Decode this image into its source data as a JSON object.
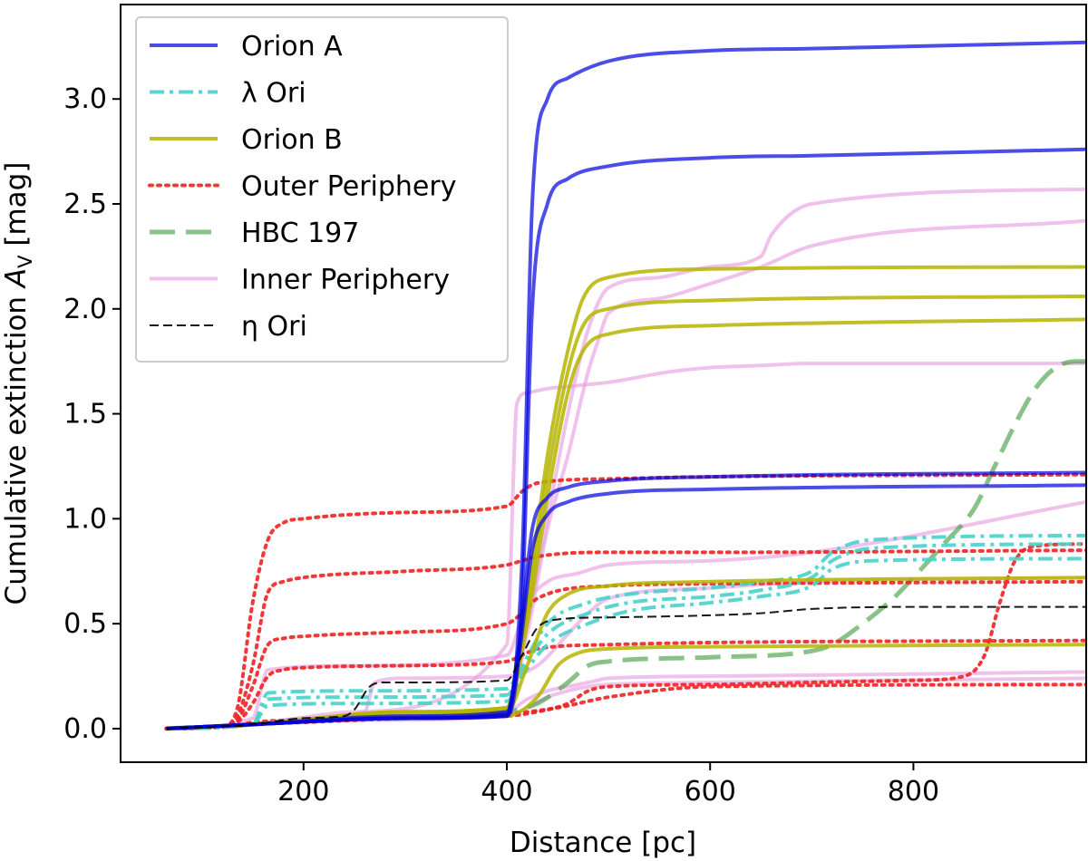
{
  "chart_data": {
    "type": "line",
    "title": "",
    "xlabel": "Distance [pc]",
    "ylabel_prefix": "Cumulative extinction ",
    "ylabel_symbol": "A",
    "ylabel_subscript": "V",
    "ylabel_suffix": " [mag]",
    "xlim": [
      20,
      970
    ],
    "ylim": [
      -0.16,
      3.45
    ],
    "xticks": [
      200,
      400,
      600,
      800
    ],
    "yticks": [
      0.0,
      0.5,
      1.0,
      1.5,
      2.0,
      2.5,
      3.0
    ],
    "xtick_labels": [
      "200",
      "400",
      "600",
      "800"
    ],
    "ytick_labels": [
      "0.0",
      "0.5",
      "1.0",
      "1.5",
      "2.0",
      "2.5",
      "3.0"
    ],
    "grid": false,
    "legend_position": "top-left",
    "legend": [
      {
        "label": "Orion A",
        "color": "#0000e0",
        "dash": "solid",
        "opacity": 0.7,
        "width": 4
      },
      {
        "label": "λ Ori",
        "color": "#48d1cc",
        "dash": "dashdot",
        "opacity": 0.9,
        "width": 4
      },
      {
        "label": "Orion B",
        "color": "#b5b500",
        "dash": "solid",
        "opacity": 0.85,
        "width": 4
      },
      {
        "label": "Outer Periphery",
        "color": "#ee2222",
        "dash": "dotted",
        "opacity": 0.9,
        "width": 4
      },
      {
        "label": "HBC 197",
        "color": "#3a9a3a",
        "dash": "dashed",
        "opacity": 0.6,
        "width": 5
      },
      {
        "label": "Inner Periphery",
        "color": "#e6a0e0",
        "dash": "solid",
        "opacity": 0.65,
        "width": 4
      },
      {
        "label": "η Ori",
        "color": "#000000",
        "dash": "finedash",
        "opacity": 0.9,
        "width": 2
      }
    ],
    "series": [
      {
        "group": "Orion A",
        "x": [
          65,
          150,
          300,
          400,
          415,
          425,
          440,
          460,
          500,
          600,
          700,
          970
        ],
        "y": [
          0,
          0.02,
          0.05,
          0.06,
          0.8,
          2.5,
          3.0,
          3.1,
          3.18,
          3.23,
          3.24,
          3.27
        ]
      },
      {
        "group": "Orion A",
        "x": [
          65,
          150,
          300,
          400,
          415,
          425,
          440,
          460,
          500,
          600,
          700,
          970
        ],
        "y": [
          0,
          0.02,
          0.05,
          0.06,
          0.6,
          2.0,
          2.5,
          2.62,
          2.68,
          2.72,
          2.73,
          2.76
        ]
      },
      {
        "group": "Orion A",
        "x": [
          65,
          150,
          300,
          400,
          412,
          425,
          440,
          460,
          500,
          600,
          970
        ],
        "y": [
          0,
          0.02,
          0.06,
          0.08,
          0.4,
          0.95,
          1.1,
          1.15,
          1.18,
          1.2,
          1.22
        ]
      },
      {
        "group": "Orion A",
        "x": [
          65,
          150,
          300,
          400,
          412,
          425,
          440,
          460,
          500,
          600,
          970
        ],
        "y": [
          0,
          0.02,
          0.05,
          0.07,
          0.35,
          0.85,
          1.02,
          1.08,
          1.12,
          1.14,
          1.16
        ]
      },
      {
        "group": "λ Ori",
        "x": [
          65,
          150,
          165,
          250,
          400,
          415,
          440,
          480,
          520,
          600,
          650,
          700,
          720,
          760,
          970
        ],
        "y": [
          0,
          0.02,
          0.17,
          0.18,
          0.19,
          0.3,
          0.5,
          0.6,
          0.64,
          0.67,
          0.7,
          0.75,
          0.84,
          0.9,
          0.92
        ]
      },
      {
        "group": "λ Ori",
        "x": [
          65,
          150,
          165,
          250,
          400,
          415,
          440,
          480,
          520,
          600,
          650,
          700,
          720,
          760,
          970
        ],
        "y": [
          0,
          0.02,
          0.14,
          0.15,
          0.16,
          0.28,
          0.45,
          0.55,
          0.6,
          0.63,
          0.66,
          0.72,
          0.8,
          0.86,
          0.88
        ]
      },
      {
        "group": "λ Ori",
        "x": [
          65,
          150,
          165,
          250,
          400,
          415,
          440,
          480,
          520,
          600,
          650,
          700,
          720,
          760,
          970
        ],
        "y": [
          0,
          0.02,
          0.11,
          0.12,
          0.13,
          0.25,
          0.4,
          0.5,
          0.56,
          0.6,
          0.63,
          0.68,
          0.76,
          0.8,
          0.81
        ]
      },
      {
        "group": "Orion B",
        "x": [
          65,
          150,
          300,
          400,
          420,
          440,
          460,
          475,
          500,
          600,
          970
        ],
        "y": [
          0,
          0.02,
          0.08,
          0.1,
          0.6,
          1.3,
          1.8,
          2.05,
          2.15,
          2.19,
          2.2
        ]
      },
      {
        "group": "Orion B",
        "x": [
          65,
          150,
          300,
          400,
          420,
          440,
          460,
          475,
          500,
          600,
          970
        ],
        "y": [
          0,
          0.02,
          0.08,
          0.1,
          0.55,
          1.2,
          1.7,
          1.92,
          2.0,
          2.04,
          2.06
        ]
      },
      {
        "group": "Orion B",
        "x": [
          65,
          150,
          300,
          400,
          420,
          440,
          460,
          475,
          500,
          600,
          970
        ],
        "y": [
          0,
          0.02,
          0.08,
          0.1,
          0.5,
          1.1,
          1.6,
          1.8,
          1.88,
          1.92,
          1.95
        ]
      },
      {
        "group": "Orion B",
        "x": [
          65,
          150,
          300,
          400,
          420,
          440,
          460,
          500,
          600,
          970
        ],
        "y": [
          0,
          0.02,
          0.07,
          0.08,
          0.3,
          0.55,
          0.64,
          0.68,
          0.7,
          0.72
        ]
      },
      {
        "group": "Orion B",
        "x": [
          65,
          150,
          300,
          400,
          430,
          450,
          470,
          500,
          600,
          970
        ],
        "y": [
          0,
          0.02,
          0.05,
          0.06,
          0.15,
          0.3,
          0.36,
          0.38,
          0.39,
          0.4
        ]
      },
      {
        "group": "Outer Periphery",
        "x": [
          65,
          120,
          135,
          150,
          165,
          180,
          200,
          300,
          400,
          415,
          430,
          500,
          600,
          970
        ],
        "y": [
          0,
          0.01,
          0.1,
          0.6,
          0.9,
          0.98,
          1.0,
          1.03,
          1.06,
          1.13,
          1.17,
          1.19,
          1.2,
          1.21
        ]
      },
      {
        "group": "Outer Periphery",
        "x": [
          65,
          120,
          135,
          150,
          165,
          180,
          200,
          300,
          400,
          415,
          430,
          500,
          600,
          970
        ],
        "y": [
          0,
          0.01,
          0.06,
          0.3,
          0.65,
          0.7,
          0.72,
          0.75,
          0.78,
          0.8,
          0.82,
          0.84,
          0.84,
          0.85
        ]
      },
      {
        "group": "Outer Periphery",
        "x": [
          65,
          120,
          135,
          150,
          165,
          180,
          200,
          300,
          400,
          415,
          430,
          500,
          600,
          970
        ],
        "y": [
          0,
          0.01,
          0.04,
          0.2,
          0.4,
          0.43,
          0.44,
          0.46,
          0.5,
          0.55,
          0.62,
          0.68,
          0.69,
          0.7
        ]
      },
      {
        "group": "Outer Periphery",
        "x": [
          65,
          120,
          135,
          150,
          165,
          180,
          200,
          300,
          400,
          415,
          430,
          500,
          600,
          970
        ],
        "y": [
          0,
          0.01,
          0.03,
          0.12,
          0.25,
          0.28,
          0.29,
          0.3,
          0.32,
          0.35,
          0.38,
          0.4,
          0.41,
          0.42
        ]
      },
      {
        "group": "Outer Periphery",
        "x": [
          65,
          130,
          150,
          200,
          300,
          400,
          430,
          460,
          480,
          500,
          600,
          700,
          800,
          850,
          870,
          885,
          900,
          920,
          970
        ],
        "y": [
          0,
          0.01,
          0.03,
          0.04,
          0.05,
          0.06,
          0.08,
          0.12,
          0.18,
          0.2,
          0.21,
          0.22,
          0.23,
          0.25,
          0.35,
          0.6,
          0.8,
          0.87,
          0.88
        ]
      },
      {
        "group": "Outer Periphery",
        "x": [
          65,
          130,
          150,
          200,
          300,
          400,
          450,
          500,
          600,
          970
        ],
        "y": [
          0,
          0.01,
          0.02,
          0.03,
          0.05,
          0.07,
          0.1,
          0.15,
          0.2,
          0.21
        ]
      },
      {
        "group": "HBC 197",
        "x": [
          65,
          150,
          200,
          300,
          400,
          430,
          460,
          480,
          500,
          600,
          700,
          720,
          750,
          780,
          800,
          830,
          860,
          880,
          900,
          920,
          940,
          960,
          970
        ],
        "y": [
          0,
          0.02,
          0.04,
          0.05,
          0.08,
          0.12,
          0.22,
          0.3,
          0.32,
          0.34,
          0.37,
          0.4,
          0.5,
          0.62,
          0.72,
          0.88,
          1.05,
          1.25,
          1.45,
          1.62,
          1.72,
          1.75,
          1.75
        ]
      },
      {
        "group": "Inner Periphery",
        "x": [
          65,
          150,
          250,
          400,
          410,
          420,
          440,
          460,
          480,
          500,
          560,
          600,
          650,
          700,
          970
        ],
        "y": [
          0,
          0.02,
          0.08,
          0.4,
          1.55,
          1.6,
          1.62,
          1.63,
          1.64,
          1.65,
          1.7,
          1.72,
          1.73,
          1.74,
          1.74
        ]
      },
      {
        "group": "Inner Periphery",
        "x": [
          65,
          150,
          250,
          400,
          420,
          440,
          460,
          480,
          500,
          550,
          600,
          650,
          660,
          700,
          970
        ],
        "y": [
          0,
          0.02,
          0.05,
          0.1,
          0.5,
          1.0,
          1.5,
          1.9,
          2.1,
          2.15,
          2.2,
          2.25,
          2.35,
          2.5,
          2.57
        ]
      },
      {
        "group": "Inner Periphery",
        "x": [
          65,
          150,
          250,
          400,
          420,
          440,
          460,
          480,
          490,
          500,
          550,
          600,
          650,
          700,
          970
        ],
        "y": [
          0,
          0.02,
          0.05,
          0.1,
          0.45,
          0.95,
          1.3,
          1.7,
          1.85,
          1.98,
          2.05,
          2.12,
          2.2,
          2.3,
          2.42
        ]
      },
      {
        "group": "Inner Periphery",
        "x": [
          65,
          150,
          165,
          250,
          400,
          420,
          440,
          470,
          500,
          600,
          700,
          970
        ],
        "y": [
          0,
          0.05,
          0.28,
          0.3,
          0.35,
          0.6,
          0.7,
          0.74,
          0.78,
          0.8,
          0.84,
          1.08
        ]
      },
      {
        "group": "Inner Periphery",
        "x": [
          65,
          150,
          200,
          260,
          270,
          300,
          400,
          430,
          460,
          480,
          500,
          600,
          700,
          970
        ],
        "y": [
          0,
          0.02,
          0.05,
          0.08,
          0.22,
          0.24,
          0.25,
          0.3,
          0.45,
          0.55,
          0.62,
          0.67,
          0.7,
          0.72
        ]
      },
      {
        "group": "Inner Periphery",
        "x": [
          65,
          150,
          250,
          400,
          420,
          440,
          460,
          480,
          500,
          600,
          970
        ],
        "y": [
          0,
          0.02,
          0.05,
          0.08,
          0.14,
          0.18,
          0.2,
          0.22,
          0.24,
          0.25,
          0.27
        ]
      },
      {
        "group": "Inner Periphery",
        "x": [
          65,
          150,
          250,
          400,
          420,
          440,
          460,
          480,
          500,
          600,
          970
        ],
        "y": [
          0,
          0.02,
          0.04,
          0.06,
          0.1,
          0.15,
          0.18,
          0.2,
          0.21,
          0.22,
          0.24
        ]
      },
      {
        "group": "η Ori",
        "x": [
          65,
          150,
          200,
          240,
          250,
          265,
          280,
          300,
          400,
          415,
          430,
          450,
          500,
          600,
          650,
          700,
          800,
          970
        ],
        "y": [
          0,
          0.02,
          0.05,
          0.06,
          0.09,
          0.2,
          0.22,
          0.22,
          0.23,
          0.35,
          0.48,
          0.52,
          0.53,
          0.54,
          0.55,
          0.57,
          0.58,
          0.58
        ]
      }
    ]
  }
}
